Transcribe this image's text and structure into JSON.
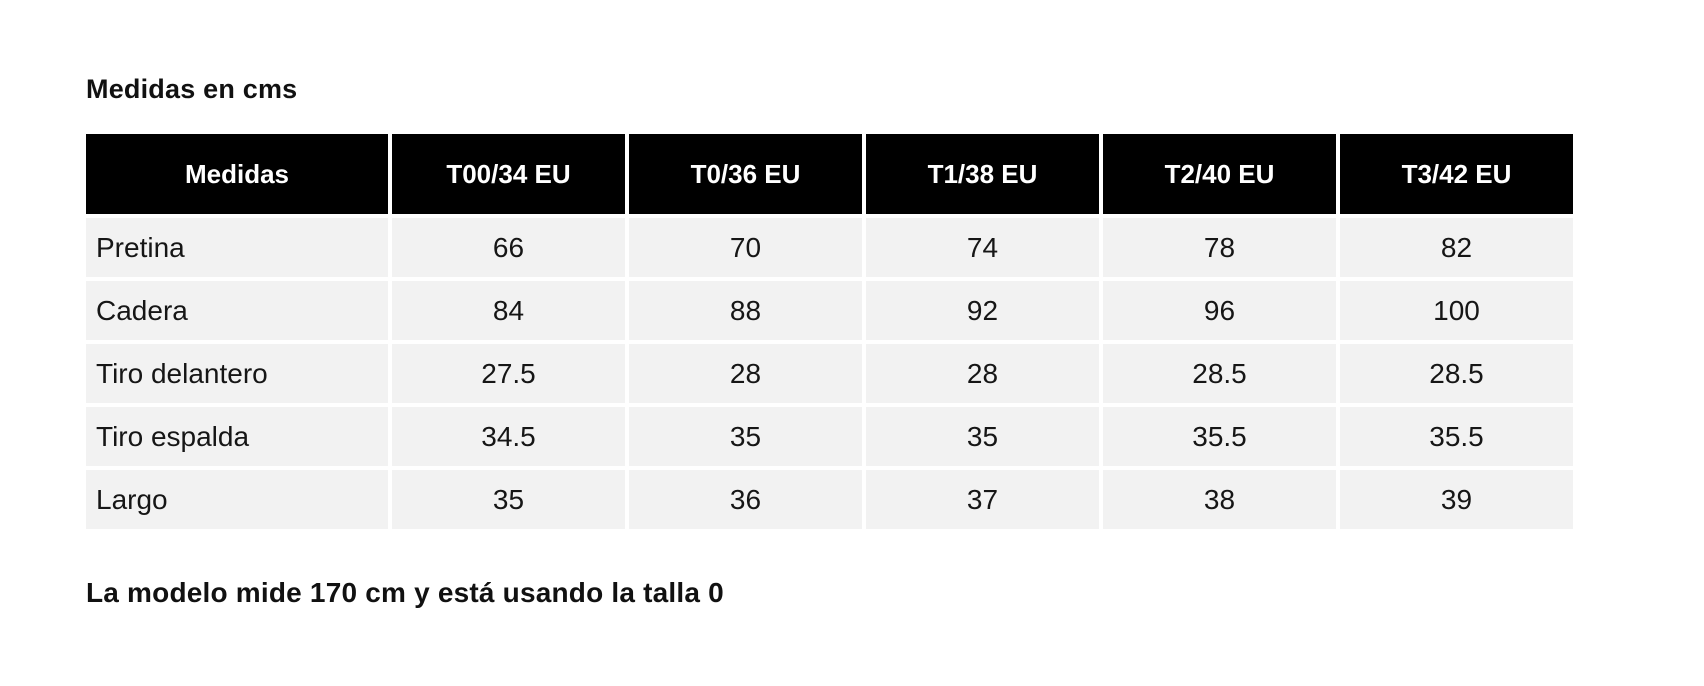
{
  "page": {
    "title": "Medidas en cms",
    "footnote": "La modelo mide 170 cm y está usando la talla 0"
  },
  "colors": {
    "header_bg": "#000000",
    "header_text": "#ffffff",
    "row_bg": "#f2f2f2",
    "body_text": "#161616",
    "page_bg": "#ffffff"
  },
  "chart_data": {
    "type": "table",
    "title": "Medidas en cms",
    "unit": "cms",
    "columns": [
      "Medidas",
      "T00/34 EU",
      "T0/36 EU",
      "T1/38 EU",
      "T2/40 EU",
      "T3/42 EU"
    ],
    "rows": [
      {
        "label": "Pretina",
        "values": [
          "66",
          "70",
          "74",
          "78",
          "82"
        ]
      },
      {
        "label": "Cadera",
        "values": [
          "84",
          "88",
          "92",
          "96",
          "100"
        ]
      },
      {
        "label": "Tiro delantero",
        "values": [
          "27.5",
          "28",
          "28",
          "28.5",
          "28.5"
        ]
      },
      {
        "label": "Tiro espalda",
        "values": [
          "34.5",
          "35",
          "35",
          "35.5",
          "35.5"
        ]
      },
      {
        "label": "Largo",
        "values": [
          "35",
          "36",
          "37",
          "38",
          "39"
        ]
      }
    ],
    "note": "La modelo mide 170 cm y está usando la talla 0",
    "layout": {
      "header_style": "black-inverse",
      "grid": "white-gaps",
      "zebra": false
    }
  }
}
